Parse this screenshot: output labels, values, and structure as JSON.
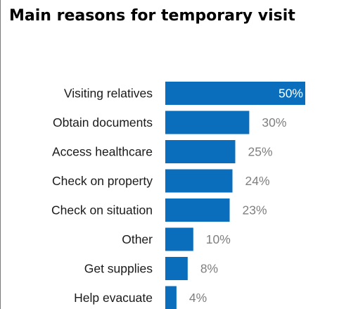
{
  "chart_data": {
    "type": "bar",
    "orientation": "horizontal",
    "title": "Main reasons for temporary visit",
    "categories": [
      "Visiting relatives",
      "Obtain documents",
      "Access healthcare",
      "Check on property",
      "Check on situation",
      "Other",
      "Get supplies",
      "Help evacuate"
    ],
    "values": [
      50,
      30,
      25,
      24,
      23,
      10,
      8,
      4
    ],
    "value_labels": [
      "50%",
      "30%",
      "25%",
      "24%",
      "23%",
      "10%",
      "8%",
      "4%"
    ],
    "unit": "%",
    "xlim": [
      0,
      50
    ],
    "grid": false,
    "legend": "none",
    "colors": {
      "bar": "#0a6ebd",
      "label_inside": "#ffffff",
      "label_outside": "#7f7f7f",
      "category_text": "#1a1a1a"
    }
  }
}
